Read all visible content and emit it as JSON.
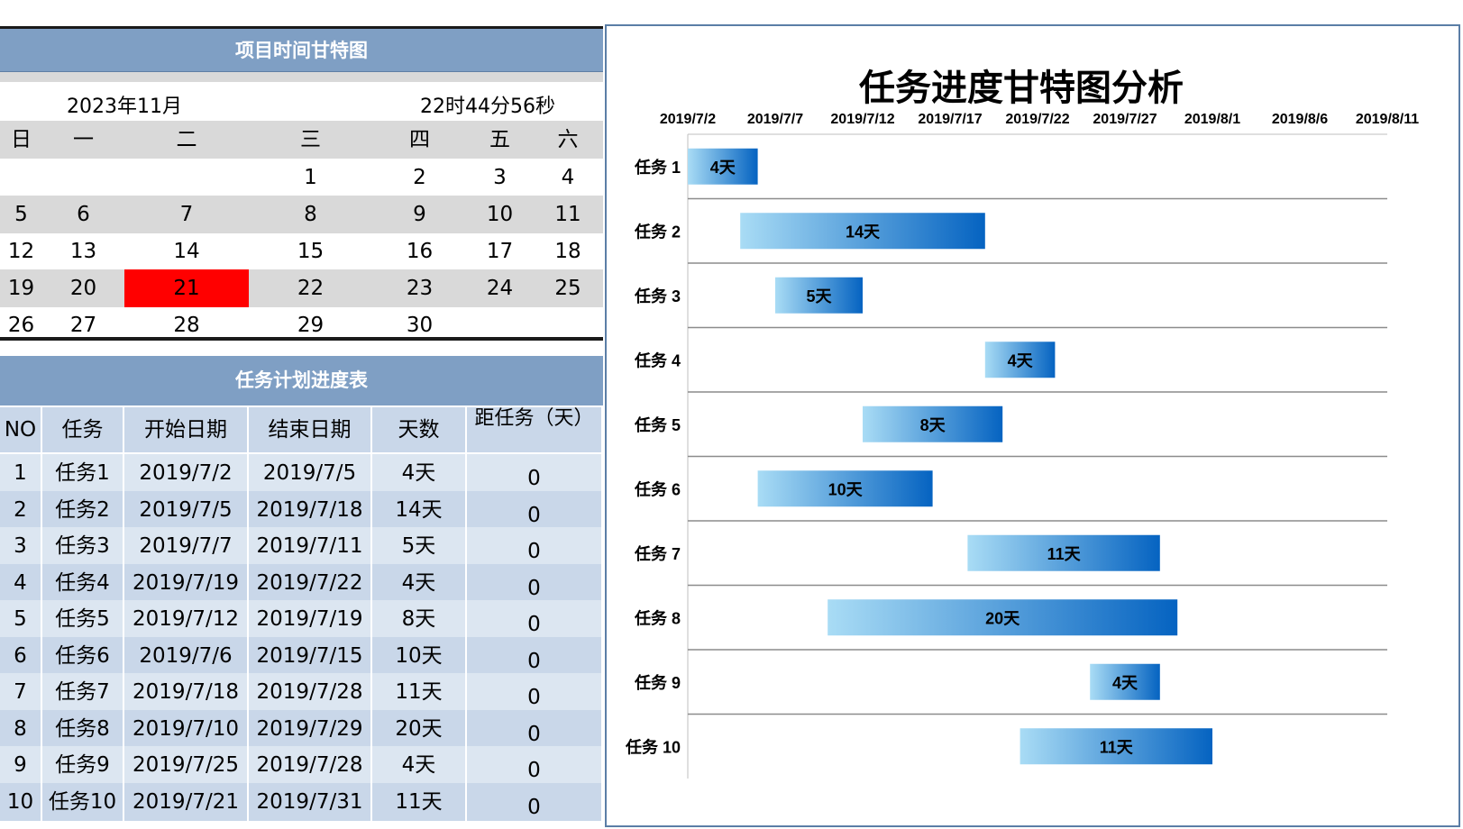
{
  "calendar": {
    "title": "项目时间甘特图",
    "month_label": "2023年11月",
    "time_label": "22时44分56秒",
    "weekdays": [
      "日",
      "一",
      "二",
      "三",
      "四",
      "五",
      "六"
    ],
    "weeks": [
      [
        "",
        "",
        "",
        "1",
        "2",
        "3",
        "4"
      ],
      [
        "5",
        "6",
        "7",
        "8",
        "9",
        "10",
        "11"
      ],
      [
        "12",
        "13",
        "14",
        "15",
        "16",
        "17",
        "18"
      ],
      [
        "19",
        "20",
        "21",
        "22",
        "23",
        "24",
        "25"
      ],
      [
        "26",
        "27",
        "28",
        "29",
        "30",
        "",
        ""
      ]
    ],
    "highlight_day": "21",
    "highlight_color": "#ff0000"
  },
  "schedule": {
    "title": "任务计划进度表",
    "headers": [
      "NO",
      "任务",
      "开始日期",
      "结束日期",
      "天数",
      "距任务（天）"
    ],
    "rows": [
      [
        "1",
        "任务1",
        "2019/7/2",
        "2019/7/5",
        "4天",
        "0"
      ],
      [
        "2",
        "任务2",
        "2019/7/5",
        "2019/7/18",
        "14天",
        "0"
      ],
      [
        "3",
        "任务3",
        "2019/7/7",
        "2019/7/11",
        "5天",
        "0"
      ],
      [
        "4",
        "任务4",
        "2019/7/19",
        "2019/7/22",
        "4天",
        "0"
      ],
      [
        "5",
        "任务5",
        "2019/7/12",
        "2019/7/19",
        "8天",
        "0"
      ],
      [
        "6",
        "任务6",
        "2019/7/6",
        "2019/7/15",
        "10天",
        "0"
      ],
      [
        "7",
        "任务7",
        "2019/7/18",
        "2019/7/28",
        "11天",
        "0"
      ],
      [
        "8",
        "任务8",
        "2019/7/10",
        "2019/7/29",
        "20天",
        "0"
      ],
      [
        "9",
        "任务9",
        "2019/7/25",
        "2019/7/28",
        "4天",
        "0"
      ],
      [
        "10",
        "任务10",
        "2019/7/21",
        "2019/7/31",
        "11天",
        "0"
      ]
    ]
  },
  "chart_data": {
    "type": "bar",
    "orientation": "horizontal-gantt",
    "title": "任务进度甘特图分析",
    "x_tick_labels": [
      "2019/7/2",
      "2019/7/7",
      "2019/7/12",
      "2019/7/17",
      "2019/7/22",
      "2019/7/27",
      "2019/8/1",
      "2019/8/6",
      "2019/8/11"
    ],
    "x_ticks": [
      "2019-07-02",
      "2019-07-07",
      "2019-07-12",
      "2019-07-17",
      "2019-07-22",
      "2019-07-27",
      "2019-08-01",
      "2019-08-06",
      "2019-08-11"
    ],
    "xlim": [
      "2019-07-02",
      "2019-08-11"
    ],
    "categories": [
      "任务 1",
      "任务 2",
      "任务 3",
      "任务 4",
      "任务 5",
      "任务 6",
      "任务 7",
      "任务 8",
      "任务 9",
      "任务 10"
    ],
    "starts": [
      "2019-07-02",
      "2019-07-05",
      "2019-07-07",
      "2019-07-19",
      "2019-07-12",
      "2019-07-06",
      "2019-07-18",
      "2019-07-10",
      "2019-07-25",
      "2019-07-21"
    ],
    "durations": [
      4,
      14,
      5,
      4,
      8,
      10,
      11,
      20,
      4,
      11
    ],
    "data_labels": [
      "4天",
      "14天",
      "5天",
      "4天",
      "8天",
      "10天",
      "11天",
      "20天",
      "4天",
      "11天"
    ],
    "grid": true,
    "bar_gradient": [
      "#a9dcf5",
      "#0563c1"
    ]
  }
}
